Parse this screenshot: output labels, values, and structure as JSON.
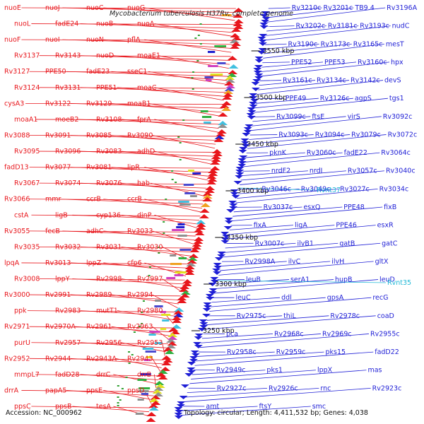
{
  "title": "Mycobacterium tuberculosis H37Rv, complete genome",
  "footer": {
    "accession": "Accession: NC_000962",
    "topology": "Topology: circular; Length: 4,411,532 bp; Genes: 4,038"
  },
  "colors": {
    "forward": "#e8161c",
    "reverse": "#1f1fd6",
    "highlight": "#1fb8d6",
    "backbone": "#8c8c8c"
  },
  "ticks": [
    {
      "label": "3550 kbp",
      "kbp": 3550
    },
    {
      "label": "3500 kbp",
      "kbp": 3500
    },
    {
      "label": "3450 kbp",
      "kbp": 3450
    },
    {
      "label": "3400 kbp",
      "kbp": 3400
    },
    {
      "label": "3350 kbp",
      "kbp": 3350
    },
    {
      "label": "3300 kbp",
      "kbp": 3300
    },
    {
      "label": "3250 kbp",
      "kbp": 3250
    }
  ],
  "forward_genes": [
    "nuoE",
    "nuoJ",
    "nuoC",
    "nuoG",
    "nuoL",
    "fadE24",
    "nuoB",
    "nuoA",
    "nuoF",
    "nuoI",
    "nuoN",
    "pflA",
    "Rv3137",
    "Rv3143",
    "nuoD",
    "moaE1",
    "Rv3127",
    "PPE50",
    "fadE23",
    "sseC1",
    "Rv3124",
    "Rv3131",
    "PPE51",
    "moaC",
    "cysA3",
    "Rv3122",
    "Rv3129",
    "moaB1",
    "moaA1",
    "moeB2",
    "Rv3108",
    "fprA",
    "Rv3088",
    "Rv3091",
    "Rv3085",
    "Rv3090",
    "Rv3095",
    "Rv3096",
    "Rv3083",
    "adhD",
    "fadD13",
    "Rv3077",
    "Rv3081",
    "lipR",
    "Rv3067",
    "Rv3074",
    "Rv3076",
    "hab",
    "Rv3066",
    "mmr",
    "ccrB",
    "ccrB",
    "cstA",
    "ligB",
    "cyp136",
    "dinP",
    "Rv3055",
    "fecB",
    "adhC",
    "Rv3033",
    "Rv3035",
    "Rv3032",
    "Rv3031",
    "Rv3030",
    "lpqA",
    "Rv3013",
    "lppZ",
    "cfp6",
    "Rv3008",
    "lppY",
    "Rv2998",
    "Rv2997",
    "Rv3000",
    "Rv2991",
    "Rv2989",
    "Rv2994",
    "ppk",
    "Rv2983",
    "mutT1",
    "Rv2980",
    "Rv2971",
    "Rv2970A",
    "Rv2961",
    "Rv2963",
    "purU",
    "Rv2957",
    "Rv2956",
    "Rv2953",
    "Rv2952",
    "Rv2944",
    "Rv2943A",
    "Rv2943",
    "mmpL7",
    "fadD28",
    "drrC",
    "drrB",
    "drrA",
    "papA5",
    "ppsE",
    "ppsD",
    "ppsC",
    "ppsB",
    "tesA"
  ],
  "reverse_genes": [
    "Rv3210c",
    "Rv3201c",
    "TB9.4",
    "Rv3196A",
    "Rv3202c",
    "Rv3181c",
    "Rv3193c",
    "nudC",
    "Rv3190c",
    "Rv3173c",
    "Rv3165c",
    "mesT",
    "PPE52",
    "PPE53",
    "Rv3160c",
    "hpx",
    "Rv3161c",
    "Rv3134c",
    "Rv3142c",
    "devS",
    "PPE49",
    "Rv3126c",
    "agpS",
    "tgs1",
    "Rv3099c",
    "ftsE",
    "virS",
    "Rv3092c",
    "Rv3093c",
    "Rv3094c",
    "Rv3079c",
    "Rv3072c",
    "pknK",
    "Rv3060c",
    "fadE22",
    "Rv3064c",
    "nrdF2",
    "nrdI",
    "Rv3057c",
    "Rv3040c",
    "Rv3046c",
    "Rv3049c",
    "Rv3027c",
    "Rv3034c",
    "Rv3037c",
    "esxQ",
    "PPE48",
    "fixB",
    "fixA",
    "ligA",
    "PPE46",
    "esxR",
    "Rv3007c",
    "ilvB1",
    "gatB",
    "gatC",
    "Rv2998A",
    "ilvC",
    "ilvH",
    "gltX",
    "leuB",
    "serA1",
    "hupB",
    "leuD",
    "leuC",
    "ddl",
    "gpsA",
    "recG",
    "Rv2975c",
    "thiL",
    "Rv2978c",
    "coaD",
    "pca",
    "Rv2968c",
    "Rv2969c",
    "Rv2955c",
    "Rv2958c",
    "Rv2959c",
    "pks15",
    "fadD22",
    "Rv2949c",
    "pks1",
    "lppX",
    "mas",
    "Rv2927c",
    "Rv2926c",
    "rnc",
    "Rv2923c",
    "amt",
    "ftsY",
    "smc"
  ],
  "highlight_genes": [
    "Rvnt37",
    "Rvnt35"
  ]
}
